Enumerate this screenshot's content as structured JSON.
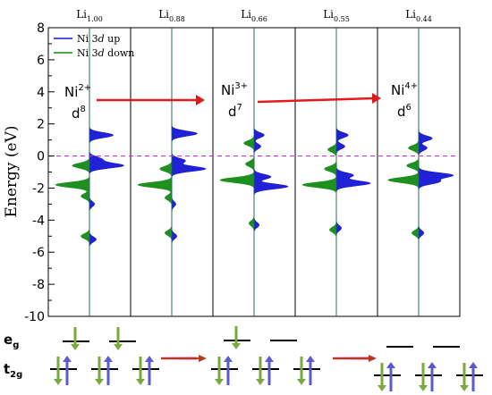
{
  "chart_data": {
    "type": "area",
    "title": "",
    "ylabel": "Energy (eV)",
    "ylim": [
      -10,
      8
    ],
    "yticks": [
      "8",
      "6",
      "4",
      "2",
      "0",
      "-2",
      "-4",
      "-6",
      "-8",
      "-10"
    ],
    "fermi_level": 0,
    "panels": [
      {
        "base": "Li",
        "sub": "1.00"
      },
      {
        "base": "Li",
        "sub": "0.88"
      },
      {
        "base": "Li",
        "sub": "0.66"
      },
      {
        "base": "Li",
        "sub": "0.55"
      },
      {
        "base": "Li",
        "sub": "0.44"
      }
    ],
    "legend": [
      {
        "name_pre": "Ni 3",
        "name_em": "d",
        "name_post": " up",
        "color": "#1515d6"
      },
      {
        "name_pre": "Ni 3",
        "name_em": "d",
        "name_post": " down",
        "color": "#138a13"
      }
    ],
    "series": [
      {
        "name": "Ni 3d up",
        "peaks": [
          [
            [
              1.3,
              0.7
            ],
            [
              -0.6,
              1.0
            ],
            [
              -0.2,
              0.35
            ],
            [
              -3.0,
              0.15
            ],
            [
              -5.2,
              0.2
            ]
          ],
          [
            [
              1.4,
              0.75
            ],
            [
              -0.8,
              1.0
            ],
            [
              -0.3,
              0.4
            ],
            [
              -3.0,
              0.12
            ],
            [
              -5.0,
              0.15
            ]
          ],
          [
            [
              1.3,
              0.3
            ],
            [
              -1.9,
              1.0
            ],
            [
              -1.3,
              0.5
            ],
            [
              0.6,
              0.2
            ],
            [
              -4.3,
              0.15
            ]
          ],
          [
            [
              1.3,
              0.35
            ],
            [
              0.6,
              0.25
            ],
            [
              -1.7,
              1.0
            ],
            [
              -1.2,
              0.5
            ],
            [
              -4.5,
              0.15
            ]
          ],
          [
            [
              1.1,
              0.4
            ],
            [
              0.5,
              0.25
            ],
            [
              -1.2,
              1.0
            ],
            [
              -1.6,
              0.6
            ],
            [
              -4.8,
              0.15
            ]
          ]
        ]
      },
      {
        "name": "Ni 3d down",
        "peaks": [
          [
            [
              -0.6,
              0.5
            ],
            [
              -1.8,
              1.0
            ],
            [
              -2.5,
              0.25
            ],
            [
              -5.0,
              0.25
            ]
          ],
          [
            [
              -0.8,
              0.35
            ],
            [
              -1.8,
              1.0
            ],
            [
              -2.6,
              0.2
            ],
            [
              -4.8,
              0.2
            ]
          ],
          [
            [
              0.8,
              0.3
            ],
            [
              -1.5,
              1.0
            ],
            [
              -0.5,
              0.25
            ],
            [
              -4.2,
              0.15
            ]
          ],
          [
            [
              0.4,
              0.25
            ],
            [
              -0.8,
              0.35
            ],
            [
              -1.8,
              1.0
            ],
            [
              -4.6,
              0.2
            ]
          ],
          [
            [
              0.5,
              0.3
            ],
            [
              -0.6,
              0.35
            ],
            [
              -1.5,
              0.9
            ],
            [
              -4.8,
              0.2
            ]
          ]
        ]
      }
    ],
    "annotations": [
      {
        "ion": "Ni",
        "charge": "2+",
        "config": "d",
        "count": "8"
      },
      {
        "ion": "Ni",
        "charge": "3+",
        "config": "d",
        "count": "7"
      },
      {
        "ion": "Ni",
        "charge": "4+",
        "config": "d",
        "count": "6"
      }
    ]
  },
  "orbital_diagram": {
    "eg_label": {
      "base": "e",
      "sub": "g"
    },
    "t2g_label": {
      "base": "t",
      "sub": "2g"
    },
    "colors": {
      "up": "#5b5bd0",
      "down": "#7aaa3e",
      "arrow": "#b53a1b",
      "level": "#000000"
    },
    "states": [
      {
        "eg": [
          "down",
          "down"
        ],
        "t2g": [
          "down-up",
          "down-up",
          "down-up"
        ]
      },
      {
        "eg": [
          "down",
          "empty"
        ],
        "t2g": [
          "down-up",
          "down-up",
          "down-up"
        ]
      },
      {
        "eg": [
          "empty",
          "empty"
        ],
        "t2g": [
          "down-up",
          "down-up",
          "down-up"
        ]
      }
    ]
  }
}
